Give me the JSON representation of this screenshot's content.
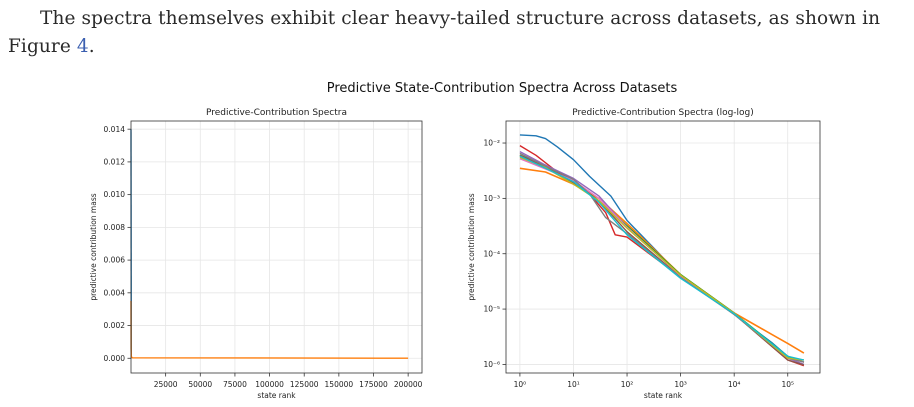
{
  "paragraph": {
    "line1": "The spectra themselves exhibit clear heavy-tailed structure across datasets, as shown in",
    "line2_prefix": "Figure ",
    "figure_ref": "4",
    "line2_suffix": "."
  },
  "figure": {
    "suptitle": "Predictive State-Contribution Spectra Across Datasets"
  },
  "colors": {
    "series": [
      "#1f77b4",
      "#ff7f0e",
      "#2ca02c",
      "#d62728",
      "#9467bd",
      "#8c564b",
      "#e377c2",
      "#7f7f7f",
      "#bcbd22",
      "#17becf"
    ],
    "grid": "#e6e6e6",
    "axis": "#333333"
  },
  "chart_data": [
    {
      "type": "line",
      "title": "Predictive-Contribution Spectra",
      "xlabel": "state rank",
      "ylabel": "predictive contribution mass",
      "xlim": [
        1,
        210000
      ],
      "ylim": [
        -0.0009,
        0.0145
      ],
      "x_ticks": [
        25000,
        50000,
        75000,
        100000,
        125000,
        150000,
        175000,
        200000
      ],
      "x_tick_labels": [
        "25000",
        "50000",
        "75000",
        "100000",
        "125000",
        "150000",
        "175000",
        "200000"
      ],
      "y_ticks": [
        0.0,
        0.002,
        0.004,
        0.006,
        0.008,
        0.01,
        0.012,
        0.014
      ],
      "y_tick_labels": [
        "0.000",
        "0.002",
        "0.004",
        "0.006",
        "0.008",
        "0.010",
        "0.012",
        "0.014"
      ],
      "grid": true,
      "series": [
        {
          "x": [
            1,
            200
          ],
          "y": [
            0.014,
            0.0
          ]
        },
        {
          "x": [
            1,
            50,
            200,
            1000,
            200000
          ],
          "y": [
            0.0035,
            0.0006,
            0.0001,
            3e-05,
            1.6e-06
          ]
        }
      ]
    },
    {
      "type": "line",
      "title": "Predictive-Contribution Spectra (log-log)",
      "xlabel": "state rank",
      "ylabel": "predictive contribution mass",
      "xscale": "log",
      "yscale": "log",
      "xlim": [
        0.55,
        400000
      ],
      "ylim": [
        7e-07,
        0.025
      ],
      "x_ticks": [
        1,
        10,
        100,
        1000,
        10000,
        100000
      ],
      "x_tick_labels": [
        "10⁰",
        "10¹",
        "10²",
        "10³",
        "10⁴",
        "10⁵"
      ],
      "y_ticks": [
        1e-06,
        1e-05,
        0.0001,
        0.001,
        0.01
      ],
      "y_tick_labels": [
        "10⁻⁶",
        "10⁻⁵",
        "10⁻⁴",
        "10⁻³",
        "10⁻²"
      ],
      "grid": true,
      "series": [
        {
          "x": [
            1,
            2,
            3,
            5,
            10,
            20,
            50,
            100,
            1000,
            10000,
            50000,
            100000,
            200000
          ],
          "y": [
            0.014,
            0.0135,
            0.012,
            0.0085,
            0.005,
            0.0025,
            0.0011,
            0.0004,
            4e-05,
            8e-06,
            2.5e-06,
            1.4e-06,
            1.1e-06
          ]
        },
        {
          "x": [
            1,
            3,
            10,
            30,
            100,
            1000,
            10000,
            50000,
            100000,
            200000
          ],
          "y": [
            0.0035,
            0.003,
            0.0018,
            0.001,
            0.00035,
            4.2e-05,
            8.5e-06,
            3.5e-06,
            2.4e-06,
            1.6e-06
          ]
        },
        {
          "x": [
            1,
            3,
            10,
            30,
            100,
            1000,
            10000,
            100000,
            200000
          ],
          "y": [
            0.006,
            0.004,
            0.002,
            0.0009,
            0.00032,
            4.2e-05,
            8.5e-06,
            1.4e-06,
            1.1e-06
          ]
        },
        {
          "x": [
            1,
            2,
            5,
            10,
            20,
            40,
            60,
            100,
            1000,
            10000,
            100000,
            200000
          ],
          "y": [
            0.009,
            0.006,
            0.003,
            0.002,
            0.0012,
            0.00055,
            0.00022,
            0.0002,
            3.8e-05,
            8.2e-06,
            1.2e-06,
            9.5e-07
          ]
        },
        {
          "x": [
            1,
            3,
            10,
            30,
            100,
            1000,
            10000,
            100000,
            200000
          ],
          "y": [
            0.007,
            0.004,
            0.0023,
            0.0011,
            0.0003,
            4e-05,
            8.3e-06,
            1.3e-06,
            1e-06
          ]
        },
        {
          "x": [
            1,
            3,
            10,
            30,
            100,
            1000,
            10000,
            100000,
            200000
          ],
          "y": [
            0.006,
            0.0037,
            0.0019,
            0.0009,
            0.00025,
            3.8e-05,
            8.1e-06,
            1.2e-06,
            9.8e-07
          ]
        },
        {
          "x": [
            1,
            3,
            10,
            30,
            100,
            1000,
            10000,
            100000,
            200000
          ],
          "y": [
            0.0052,
            0.0034,
            0.0021,
            0.001,
            0.0003,
            4e-05,
            8.4e-06,
            1.3e-06,
            1.1e-06
          ]
        },
        {
          "x": [
            1,
            3,
            10,
            20,
            40,
            100,
            1000,
            10000,
            100000,
            200000
          ],
          "y": [
            0.0065,
            0.0038,
            0.0022,
            0.0012,
            0.00045,
            0.00023,
            3.7e-05,
            8e-06,
            1.3e-06,
            1.1e-06
          ]
        },
        {
          "x": [
            1,
            3,
            10,
            30,
            100,
            1000,
            10000,
            100000,
            200000
          ],
          "y": [
            0.0055,
            0.0036,
            0.0018,
            0.0009,
            0.00029,
            4.1e-05,
            8.4e-06,
            1.3e-06,
            1.2e-06
          ]
        },
        {
          "x": [
            1,
            3,
            10,
            30,
            100,
            1000,
            10000,
            100000,
            200000
          ],
          "y": [
            0.0058,
            0.0035,
            0.002,
            0.00085,
            0.00022,
            3.6e-05,
            8.2e-06,
            1.4e-06,
            1.2e-06
          ]
        }
      ]
    }
  ]
}
